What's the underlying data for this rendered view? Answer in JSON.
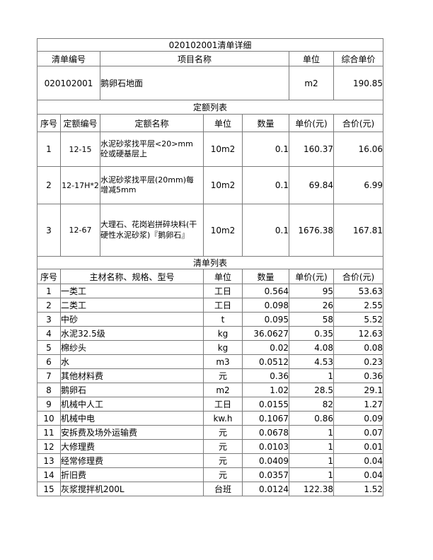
{
  "page": {
    "title": "020102001清单详细"
  },
  "summary": {
    "headers": [
      "清单编号",
      "项目名称",
      "单位",
      "综合单价"
    ],
    "row": {
      "code": "020102001",
      "name": "鹅卵石地面",
      "unit": "m2",
      "price": "190.85"
    }
  },
  "quota": {
    "section_title": "定额列表",
    "headers": [
      "序号",
      "定额编号",
      "定额名称",
      "单位",
      "数量",
      "单价(元)",
      "合价(元)"
    ],
    "rows": [
      [
        "1",
        "12-15",
        "水泥砂浆找平层<20>mm\n砼或硬基层上",
        "10m2",
        "0.1",
        "160.37",
        "16.06"
      ],
      [
        "2",
        "12-17H*2",
        "水泥砂浆找平层(20mm)每\n增减5mm",
        "10m2",
        "0.1",
        "69.84",
        "6.99"
      ],
      [
        "3",
        "12-67",
        "大理石、花岗岩拼碎块料(干\n硬性水泥砂浆)『鹅卵石』",
        "10m2",
        "0.1",
        "1676.38",
        "167.81"
      ]
    ]
  },
  "materials": {
    "section_title": "清单列表",
    "headers": [
      "序号",
      "主材名称、规格、型号",
      "单位",
      "数量",
      "单价(元)",
      "合价(元)"
    ],
    "rows": [
      [
        "1",
        "一类工",
        "工日",
        "0.564",
        "95",
        "53.63"
      ],
      [
        "2",
        "二类工",
        "工日",
        "0.098",
        "26",
        "2.55"
      ],
      [
        "3",
        "中砂",
        "t",
        "0.095",
        "58",
        "5.52"
      ],
      [
        "4",
        "水泥32.5级",
        "kg",
        "36.0627",
        "0.35",
        "12.63"
      ],
      [
        "5",
        "棉纱头",
        "kg",
        "0.02",
        "4.08",
        "0.08"
      ],
      [
        "6",
        "水",
        "m3",
        "0.0512",
        "4.53",
        "0.23"
      ],
      [
        "7",
        "其他材料费",
        "元",
        "0.36",
        "1",
        "0.36"
      ],
      [
        "8",
        "鹅卵石",
        "m2",
        "1.02",
        "28.5",
        "29.1"
      ],
      [
        "9",
        "机械中人工",
        "工日",
        "0.0155",
        "82",
        "1.27"
      ],
      [
        "10",
        "机械中电",
        "kw.h",
        "0.1067",
        "0.86",
        "0.09"
      ],
      [
        "11",
        "安拆费及场外运输费",
        "元",
        "0.0678",
        "1",
        "0.07"
      ],
      [
        "12",
        "大修理费",
        "元",
        "0.0103",
        "1",
        "0.01"
      ],
      [
        "13",
        "经常修理费",
        "元",
        "0.0409",
        "1",
        "0.04"
      ],
      [
        "14",
        "折旧费",
        "元",
        "0.0357",
        "1",
        "0.04"
      ],
      [
        "15",
        "灰浆搅拌机200L",
        "台班",
        "0.0124",
        "122.38",
        "1.52"
      ]
    ]
  }
}
